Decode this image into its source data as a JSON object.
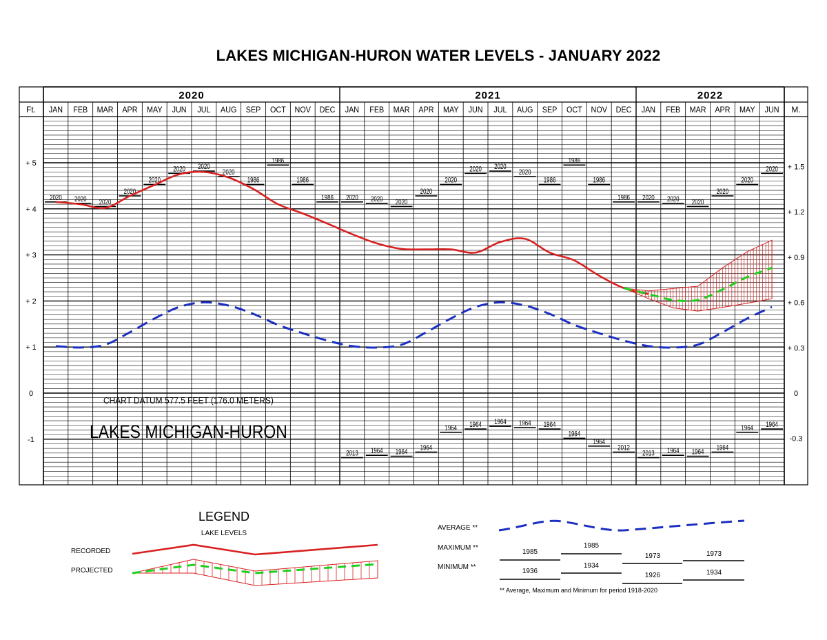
{
  "title": "LAKES MICHIGAN-HURON WATER LEVELS - JANUARY 2022",
  "colors": {
    "recorded": "#d82020",
    "average": "#1b2fc0",
    "projected": "#1fcf1f",
    "grid": "#000000"
  },
  "chart_data": {
    "type": "line",
    "years": [
      "2020",
      "2021",
      "2022"
    ],
    "months": [
      "JAN",
      "FEB",
      "MAR",
      "APR",
      "MAY",
      "JUN",
      "JUL",
      "AUG",
      "SEP",
      "OCT",
      "NOV",
      "DEC",
      "JAN",
      "FEB",
      "MAR",
      "APR",
      "MAY",
      "JUN",
      "JUL",
      "AUG",
      "SEP",
      "OCT",
      "NOV",
      "DEC",
      "JAN",
      "FEB",
      "MAR",
      "APR",
      "MAY",
      "JUN"
    ],
    "left_axis_unit": "Ft.",
    "right_axis_unit": "M.",
    "left_ticks": [
      {
        "value": 5,
        "label": "+ 5"
      },
      {
        "value": 4,
        "label": "+ 4"
      },
      {
        "value": 3,
        "label": "+ 3"
      },
      {
        "value": 2,
        "label": "+ 2"
      },
      {
        "value": 1,
        "label": "+ 1"
      },
      {
        "value": 0,
        "label": "0"
      },
      {
        "value": -1,
        "label": "-1"
      }
    ],
    "right_ticks": [
      {
        "ft": 4.92,
        "label": "+ 1.5"
      },
      {
        "ft": 3.94,
        "label": "+ 1.2"
      },
      {
        "ft": 2.95,
        "label": "+ 0.9"
      },
      {
        "ft": 1.97,
        "label": "+ 0.6"
      },
      {
        "ft": 0.98,
        "label": "+ 0.3"
      },
      {
        "ft": 0,
        "label": "0"
      },
      {
        "ft": -0.98,
        "label": "-0.3"
      }
    ],
    "ylim": [
      -2,
      6
    ],
    "series": [
      {
        "kind": "recorded",
        "x": [
          0,
          1,
          2,
          3,
          4,
          5,
          6,
          7,
          8,
          9,
          10,
          11,
          12,
          13,
          14,
          15,
          16,
          17,
          18,
          19,
          20,
          21,
          22,
          23,
          24
        ],
        "values": [
          4.15,
          4.1,
          4.02,
          4.28,
          4.52,
          4.75,
          4.8,
          4.68,
          4.43,
          4.1,
          3.9,
          3.68,
          3.45,
          3.25,
          3.13,
          3.12,
          3.12,
          3.05,
          3.28,
          3.35,
          3.05,
          2.88,
          2.55,
          2.28,
          2.15
        ]
      },
      {
        "kind": "average",
        "x": [
          0,
          1,
          2,
          3,
          4,
          5,
          6,
          7,
          8,
          9,
          10,
          11,
          12,
          13,
          14,
          15,
          16,
          17,
          18,
          19,
          20,
          21,
          22,
          23,
          24,
          25,
          26,
          27,
          28,
          29
        ],
        "values": [
          1.02,
          0.99,
          1.05,
          1.32,
          1.62,
          1.87,
          1.97,
          1.9,
          1.72,
          1.48,
          1.3,
          1.14,
          1.02,
          0.99,
          1.05,
          1.32,
          1.62,
          1.87,
          1.97,
          1.9,
          1.72,
          1.48,
          1.3,
          1.14,
          1.02,
          0.99,
          1.05,
          1.32,
          1.62,
          1.87
        ]
      },
      {
        "kind": "projected",
        "x": [
          23,
          24,
          25,
          26,
          27,
          28,
          29
        ],
        "values": [
          2.28,
          2.15,
          2.02,
          2.02,
          2.25,
          2.52,
          2.72
        ]
      },
      {
        "kind": "projected_upper",
        "x": [
          23,
          24,
          25,
          26,
          27,
          28,
          29
        ],
        "values": [
          2.28,
          2.22,
          2.27,
          2.32,
          2.72,
          3.07,
          3.32
        ]
      },
      {
        "kind": "projected_lower",
        "x": [
          23,
          24,
          25,
          26,
          27,
          28,
          29
        ],
        "values": [
          2.28,
          2.05,
          1.85,
          1.78,
          1.86,
          1.95,
          2.05
        ]
      }
    ],
    "maximum": [
      {
        "x": 0,
        "value": 4.15,
        "year": "2020"
      },
      {
        "x": 1,
        "value": 4.12,
        "year": "2020"
      },
      {
        "x": 2,
        "value": 4.05,
        "year": "2020"
      },
      {
        "x": 3,
        "value": 4.28,
        "year": "2020"
      },
      {
        "x": 4,
        "value": 4.53,
        "year": "2020"
      },
      {
        "x": 5,
        "value": 4.77,
        "year": "2020"
      },
      {
        "x": 6,
        "value": 4.82,
        "year": "2020"
      },
      {
        "x": 7,
        "value": 4.7,
        "year": "2020"
      },
      {
        "x": 8,
        "value": 4.53,
        "year": "1986"
      },
      {
        "x": 9,
        "value": 4.95,
        "year": "1986"
      },
      {
        "x": 10,
        "value": 4.53,
        "year": "1986"
      },
      {
        "x": 11,
        "value": 4.15,
        "year": "1986"
      },
      {
        "x": 12,
        "value": 4.15,
        "year": "2020"
      },
      {
        "x": 13,
        "value": 4.12,
        "year": "2020"
      },
      {
        "x": 14,
        "value": 4.05,
        "year": "2020"
      },
      {
        "x": 15,
        "value": 4.28,
        "year": "2020"
      },
      {
        "x": 16,
        "value": 4.53,
        "year": "2020"
      },
      {
        "x": 17,
        "value": 4.77,
        "year": "2020"
      },
      {
        "x": 18,
        "value": 4.82,
        "year": "2020"
      },
      {
        "x": 19,
        "value": 4.7,
        "year": "2020"
      },
      {
        "x": 20,
        "value": 4.53,
        "year": "1986"
      },
      {
        "x": 21,
        "value": 4.95,
        "year": "1986"
      },
      {
        "x": 22,
        "value": 4.53,
        "year": "1986"
      },
      {
        "x": 23,
        "value": 4.15,
        "year": "1986"
      },
      {
        "x": 24,
        "value": 4.15,
        "year": "2020"
      },
      {
        "x": 25,
        "value": 4.12,
        "year": "2020"
      },
      {
        "x": 26,
        "value": 4.05,
        "year": "2020"
      },
      {
        "x": 27,
        "value": 4.28,
        "year": "2020"
      },
      {
        "x": 28,
        "value": 4.53,
        "year": "2020"
      },
      {
        "x": 29,
        "value": 4.77,
        "year": "2020"
      }
    ],
    "minimum": [
      {
        "x": 12,
        "value": -1.4,
        "year": "2013"
      },
      {
        "x": 13,
        "value": -1.35,
        "year": "1964"
      },
      {
        "x": 14,
        "value": -1.37,
        "year": "1964"
      },
      {
        "x": 15,
        "value": -1.28,
        "year": "1964"
      },
      {
        "x": 16,
        "value": -0.85,
        "year": "1964"
      },
      {
        "x": 17,
        "value": -0.78,
        "year": "1964"
      },
      {
        "x": 18,
        "value": -0.72,
        "year": "1964"
      },
      {
        "x": 19,
        "value": -0.75,
        "year": "1964"
      },
      {
        "x": 20,
        "value": -0.78,
        "year": "1964"
      },
      {
        "x": 21,
        "value": -0.98,
        "year": "1964"
      },
      {
        "x": 22,
        "value": -1.15,
        "year": "1964"
      },
      {
        "x": 23,
        "value": -1.28,
        "year": "2012"
      },
      {
        "x": 24,
        "value": -1.4,
        "year": "2013"
      },
      {
        "x": 25,
        "value": -1.35,
        "year": "1964"
      },
      {
        "x": 26,
        "value": -1.37,
        "year": "1964"
      },
      {
        "x": 27,
        "value": -1.28,
        "year": "1964"
      },
      {
        "x": 28,
        "value": -0.85,
        "year": "1964"
      },
      {
        "x": 29,
        "value": -0.78,
        "year": "1964"
      }
    ],
    "annotations": {
      "datum": "CHART DATUM  577.5 FEET (176.0 METERS)",
      "lake_name": "LAKES MICHIGAN-HURON"
    }
  },
  "legend": {
    "title": "LEGEND",
    "subtitle": "LAKE LEVELS",
    "recorded_label": "RECORDED",
    "projected_label": "PROJECTED",
    "average_label": "AVERAGE **",
    "maximum_label": "MAXIMUM **",
    "minimum_label": "MINIMUM **",
    "max_years": [
      "1985",
      "1985",
      "1973",
      "1973"
    ],
    "min_years": [
      "1936",
      "1934",
      "1926",
      "1934"
    ],
    "footnote": "** Average, Maximum and Minimum for period 1918-2020"
  }
}
